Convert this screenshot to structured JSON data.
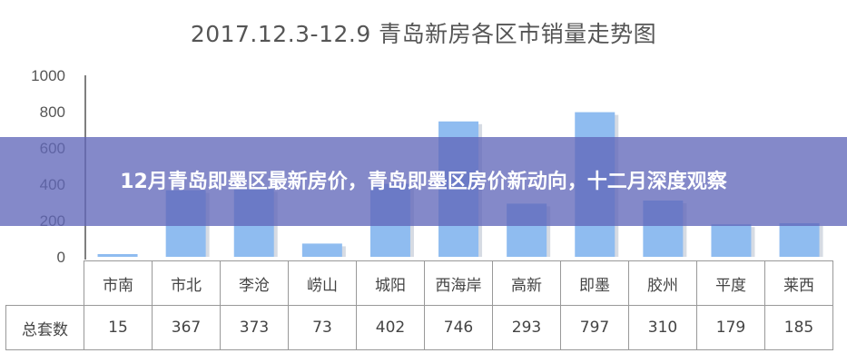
{
  "chart_data": {
    "type": "bar",
    "title": "2017.12.3-12.9  青岛新房各区市销量走势图",
    "categories": [
      "市南",
      "市北",
      "李沧",
      "崂山",
      "城阳",
      "西海岸",
      "高新",
      "即墨",
      "胶州",
      "平度",
      "莱西"
    ],
    "row_label": "总套数",
    "values": [
      15,
      367,
      373,
      73,
      402,
      746,
      293,
      797,
      310,
      179,
      185
    ],
    "ylim": [
      0,
      1000
    ],
    "yticks": [
      0,
      200,
      400,
      600,
      800,
      1000
    ],
    "bar_color": "#8fbcf0",
    "grid": false
  },
  "banner": {
    "text": "12月青岛即墨区最新房价，青岛即墨区房价新动向，十二月深度观察",
    "color": "#6268ba"
  }
}
